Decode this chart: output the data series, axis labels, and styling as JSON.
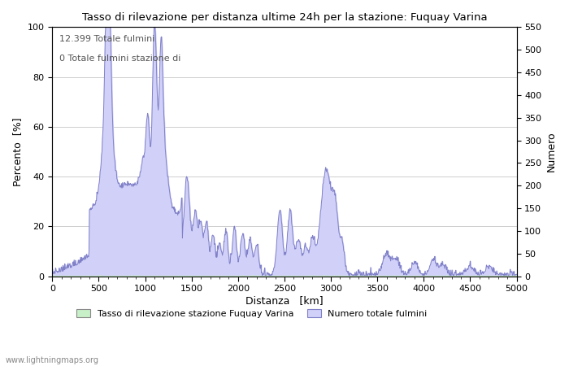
{
  "title": "Tasso di rilevazione per distanza ultime 24h per la stazione: Fuquay Varina",
  "xlabel": "Distanza   [km]",
  "ylabel_left": "Percento  [%]",
  "ylabel_right": "Numero",
  "annotation_line1": "12.399 Totale fulmini",
  "annotation_line2": "0 Totale fulmini stazione di",
  "xlim": [
    0,
    5000
  ],
  "ylim_left": [
    0,
    100
  ],
  "ylim_right": [
    0,
    550
  ],
  "xticks": [
    0,
    500,
    1000,
    1500,
    2000,
    2500,
    3000,
    3500,
    4000,
    4500,
    5000
  ],
  "yticks_left": [
    0,
    20,
    40,
    60,
    80,
    100
  ],
  "yticks_right": [
    0,
    50,
    100,
    150,
    200,
    250,
    300,
    350,
    400,
    450,
    500,
    550
  ],
  "legend_label_green": "Tasso di rilevazione stazione Fuquay Varina",
  "legend_label_blue": "Numero totale fulmini",
  "watermark": "www.lightningmaps.org",
  "fill_color_green": "#c8f0c8",
  "fill_color_blue": "#d0d0f8",
  "line_color": "#8080c8",
  "background_color": "#ffffff",
  "grid_color": "#bbbbbb",
  "figsize": [
    7.0,
    4.5
  ],
  "dpi": 100
}
